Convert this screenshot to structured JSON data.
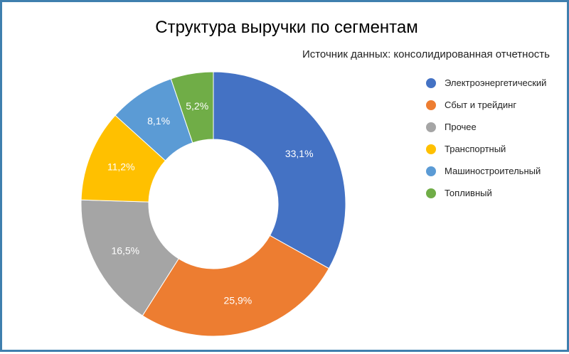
{
  "chart_data": {
    "type": "pie",
    "subtype": "donut",
    "title": "Структура выручки по сегментам",
    "subtitle": "Источник данных: консолидированная отчетность",
    "legend_position": "right",
    "slices": [
      {
        "label": "Электроэнергетический",
        "value": 33.1,
        "display": "33,1%",
        "color": "#4472c4"
      },
      {
        "label": "Сбыт и трейдинг",
        "value": 25.9,
        "display": "25,9%",
        "color": "#ed7d31"
      },
      {
        "label": "Прочее",
        "value": 16.5,
        "display": "16,5%",
        "color": "#a5a5a5"
      },
      {
        "label": "Транспортный",
        "value": 11.2,
        "display": "11,2%",
        "color": "#ffc000"
      },
      {
        "label": "Машиностроительный",
        "value": 8.1,
        "display": "8,1%",
        "color": "#5b9bd5"
      },
      {
        "label": "Топливный",
        "value": 5.2,
        "display": "5,2%",
        "color": "#70ad47"
      }
    ]
  }
}
